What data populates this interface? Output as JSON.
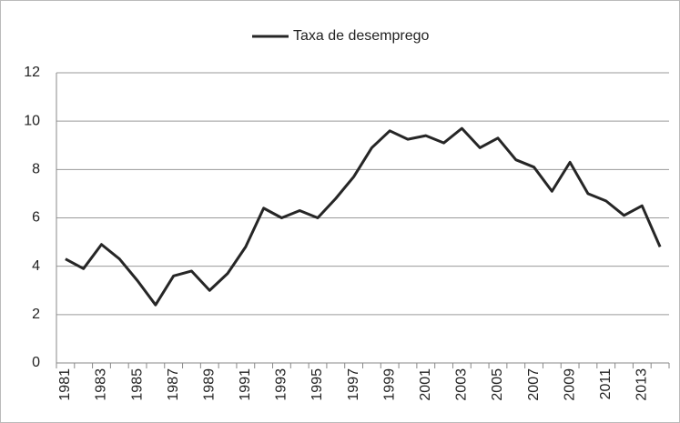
{
  "chart_data": {
    "type": "line",
    "categories": [
      "1981",
      null,
      "1983",
      null,
      "1985",
      null,
      "1987",
      null,
      "1989",
      null,
      "1991",
      null,
      "1993",
      null,
      "1995",
      null,
      "1997",
      null,
      "1999",
      null,
      "2001",
      null,
      "2003",
      null,
      "2005",
      null,
      "2007",
      null,
      "2009",
      null,
      "2011",
      null,
      "2013",
      null
    ],
    "series": [
      {
        "name": "Taxa de desemprego",
        "color": "#262626",
        "values": [
          4.3,
          3.9,
          4.9,
          4.3,
          3.4,
          2.4,
          3.6,
          3.8,
          3.0,
          3.7,
          4.8,
          6.4,
          6.0,
          6.3,
          6.0,
          6.8,
          7.7,
          8.9,
          9.6,
          9.25,
          9.4,
          9.1,
          9.7,
          8.9,
          9.3,
          8.4,
          8.1,
          7.1,
          8.3,
          7.0,
          6.7,
          6.1,
          6.5,
          4.8
        ]
      }
    ],
    "ylim": [
      0,
      12
    ],
    "yticks": [
      0,
      2,
      4,
      6,
      8,
      10,
      12
    ],
    "grid": true,
    "legend": "top"
  }
}
